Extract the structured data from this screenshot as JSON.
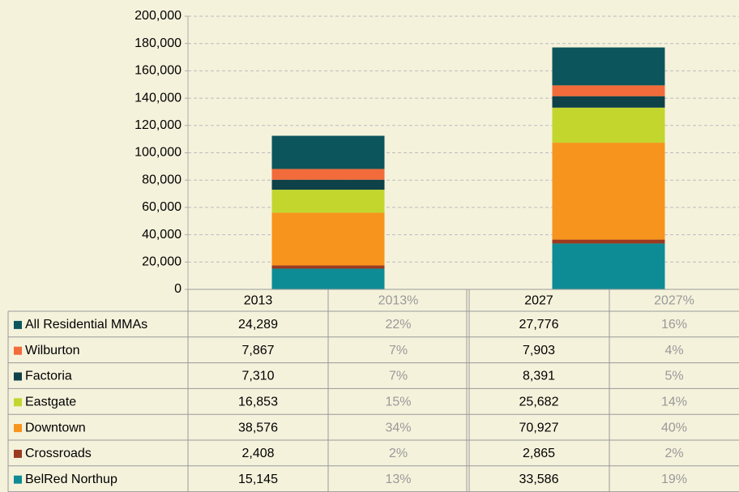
{
  "chart_data": {
    "type": "stacked_bar",
    "categories": [
      "2013",
      "2027"
    ],
    "share_columns": [
      "2013%",
      "2027%"
    ],
    "ylim": [
      0,
      200000
    ],
    "yticks": [
      0,
      {
        "value": 20000,
        "label": "20,000"
      },
      {
        "value": 40000,
        "label": "40,000"
      },
      {
        "value": 60000,
        "label": "60,000"
      },
      {
        "value": 80000,
        "label": "80,000"
      },
      {
        "value": 100000,
        "label": "100,000"
      },
      {
        "value": 120000,
        "label": "120,000"
      },
      {
        "value": 140000,
        "label": "140,000"
      },
      {
        "value": 160000,
        "label": "160,000"
      },
      {
        "value": 180000,
        "label": "180,000"
      },
      {
        "value": 200000,
        "label": "200,000"
      }
    ],
    "grid": true,
    "series": [
      {
        "name": "All Residential MMAs",
        "color": "#0d555c",
        "values": [
          24289,
          27776
        ],
        "value_labels": [
          "24,289",
          "27,776"
        ],
        "share_labels": [
          "22%",
          "16%"
        ]
      },
      {
        "name": "Wilburton",
        "color": "#f26b3a",
        "values": [
          7867,
          7903
        ],
        "value_labels": [
          "7,867",
          "7,903"
        ],
        "share_labels": [
          "7%",
          "4%"
        ]
      },
      {
        "name": "Factoria",
        "color": "#0f4148",
        "values": [
          7310,
          8391
        ],
        "value_labels": [
          "7,310",
          "8,391"
        ],
        "share_labels": [
          "7%",
          "5%"
        ]
      },
      {
        "name": "Eastgate",
        "color": "#c2d62e",
        "values": [
          16853,
          25682
        ],
        "value_labels": [
          "16,853",
          "25,682"
        ],
        "share_labels": [
          "15%",
          "14%"
        ]
      },
      {
        "name": "Downtown",
        "color": "#f7941d",
        "values": [
          38576,
          70927
        ],
        "value_labels": [
          "38,576",
          "70,927"
        ],
        "share_labels": [
          "34%",
          "40%"
        ]
      },
      {
        "name": "Crossroads",
        "color": "#9b3a1f",
        "values": [
          2408,
          2865
        ],
        "value_labels": [
          "2,408",
          "2,865"
        ],
        "share_labels": [
          "2%",
          "2%"
        ]
      },
      {
        "name": "BelRed Northup",
        "color": "#0e8c96",
        "values": [
          15145,
          33586
        ],
        "value_labels": [
          "15,145",
          "33,586"
        ],
        "share_labels": [
          "13%",
          "19%"
        ]
      }
    ]
  }
}
